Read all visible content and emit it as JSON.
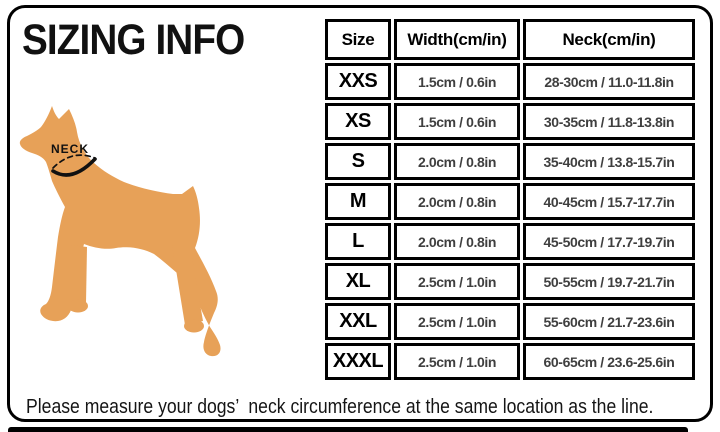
{
  "title": "SIZING INFO",
  "dog": {
    "neck_label": "NECK",
    "color": "#E7A158"
  },
  "chart_data": {
    "type": "table",
    "title": "SIZING INFO",
    "columns": [
      "Size",
      "Width(cm/in)",
      "Neck(cm/in)"
    ],
    "rows": [
      [
        "XXS",
        "1.5cm / 0.6in",
        "28-30cm / 11.0-11.8in"
      ],
      [
        "XS",
        "1.5cm / 0.6in",
        "30-35cm / 11.8-13.8in"
      ],
      [
        "S",
        "2.0cm / 0.8in",
        "35-40cm / 13.8-15.7in"
      ],
      [
        "M",
        "2.0cm / 0.8in",
        "40-45cm / 15.7-17.7in"
      ],
      [
        "L",
        "2.0cm / 0.8in",
        "45-50cm / 17.7-19.7in"
      ],
      [
        "XL",
        "2.5cm / 1.0in",
        "50-55cm / 19.7-21.7in"
      ],
      [
        "XXL",
        "2.5cm / 1.0in",
        "55-60cm / 21.7-23.6in"
      ],
      [
        "XXXL",
        "2.5cm / 1.0in",
        "60-65cm / 23.6-25.6in"
      ]
    ]
  },
  "footer": {
    "note": "Please measure your dogs’  neck circumference at the same location as the line."
  },
  "colors": {
    "dog": "#E7A158",
    "cell_text": "#3f3f3f",
    "border": "#000000",
    "background": "#FFFFFF"
  }
}
